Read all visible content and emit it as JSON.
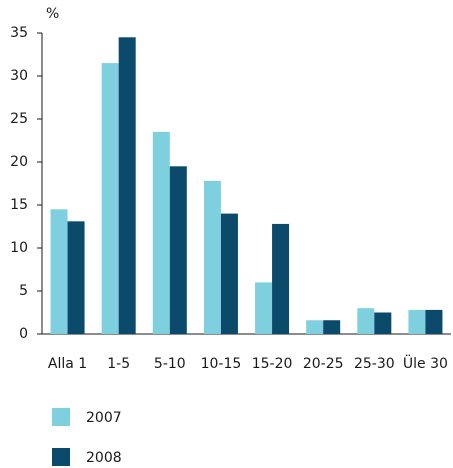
{
  "chart_data": {
    "type": "bar",
    "ylabel": "%",
    "categories": [
      "Alla 1",
      "1-5",
      "5-10",
      "10-15",
      "15-20",
      "20-25",
      "25-30",
      "Üle 30"
    ],
    "series": [
      {
        "name": "2007",
        "color": "#7fd0de",
        "values": [
          14.5,
          31.5,
          23.5,
          17.8,
          6,
          1.6,
          3,
          2.8
        ]
      },
      {
        "name": "2008",
        "color": "#0b4a6b",
        "values": [
          13.1,
          34.5,
          19.5,
          14,
          12.8,
          1.6,
          2.5,
          2.8
        ]
      }
    ],
    "ylim": [
      0,
      35
    ],
    "yticks": [
      0,
      5,
      10,
      15,
      20,
      25,
      30,
      35
    ],
    "grid": false,
    "legend": "bottom"
  }
}
